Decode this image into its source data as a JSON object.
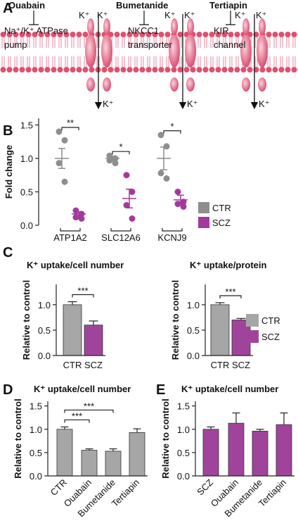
{
  "panel_labels": [
    "A",
    "B",
    "C",
    "D",
    "E"
  ],
  "panel_a": {
    "ion": "K⁺",
    "drugs": [
      {
        "name": "Ouabain",
        "target": [
          "Na⁺/K⁺ ATPase",
          "pump"
        ]
      },
      {
        "name": "Bumetanide",
        "target": [
          "NKCC1",
          "transporter"
        ]
      },
      {
        "name": "Tertiapin",
        "target": [
          "KIR",
          "channel"
        ]
      }
    ]
  },
  "chart_data": [
    {
      "type": "dot",
      "ylabel": "Fold change",
      "categories": [
        "ATP1A2",
        "SLC12A6",
        "KCNJ9"
      ],
      "series": [
        {
          "name": "CTR",
          "color": "#8e8e8e",
          "points": [
            [
              1.4,
              1.27,
              0.93,
              0.65
            ],
            [
              1.04,
              1.0,
              0.97,
              0.93
            ],
            [
              1.35,
              1.18,
              0.78,
              0.7
            ]
          ],
          "means": [
            1.0,
            1.0,
            1.0
          ],
          "sems": [
            0.15,
            0.03,
            0.17
          ]
        },
        {
          "name": "SCZ",
          "color": "#a3399d",
          "points": [
            [
              0.22,
              0.17,
              0.12,
              0.1
            ],
            [
              0.75,
              0.5,
              0.3,
              0.1
            ],
            [
              0.5,
              0.35,
              0.32,
              0.28
            ]
          ],
          "means": [
            0.17,
            0.4,
            0.38
          ],
          "sems": [
            0.03,
            0.14,
            0.07
          ]
        }
      ],
      "ylim": [
        0,
        1.6
      ],
      "yticks": [
        {
          "value": 0,
          "label": "0.0"
        },
        0.5,
        {
          "value": 1,
          "label": "1.0"
        },
        1.5
      ],
      "significance": [
        {
          "category": "ATP1A2",
          "label": "**"
        },
        {
          "category": "SLC12A6",
          "label": "*"
        },
        {
          "category": "KCNJ9",
          "label": "*"
        }
      ],
      "legend": true
    },
    {
      "type": "bar",
      "title": "K⁺ uptake/cell number",
      "ylabel": "Relative to control",
      "categories": [
        "CTR",
        "SCZ"
      ],
      "values": [
        1.0,
        0.6
      ],
      "errors": [
        0.06,
        0.08
      ],
      "colors": [
        "#a6a6a6",
        "#a0449b"
      ],
      "ylim": [
        0,
        1.4
      ],
      "yticks": [
        {
          "value": 0,
          "label": "0.0"
        },
        0.5,
        {
          "value": 1,
          "label": "1.0"
        }
      ],
      "significance": [
        {
          "between": [
            "CTR",
            "SCZ"
          ],
          "label": "***"
        }
      ],
      "legend": false,
      "xtick_rotation": 0
    },
    {
      "type": "bar",
      "title": "K⁺ uptake/protein",
      "ylabel": "Relative to control",
      "categories": [
        "CTR",
        "SCZ"
      ],
      "values": [
        1.0,
        0.7
      ],
      "errors": [
        0.04,
        0.03
      ],
      "colors": [
        "#a6a6a6",
        "#a0449b"
      ],
      "ylim": [
        0,
        1.4
      ],
      "yticks": [
        {
          "value": 0,
          "label": "0.0"
        },
        0.5,
        {
          "value": 1,
          "label": "1.0"
        }
      ],
      "significance": [
        {
          "between": [
            "CTR",
            "SCZ"
          ],
          "label": "***"
        }
      ],
      "legend": true,
      "xtick_rotation": 0
    },
    {
      "type": "bar",
      "title": "K⁺ uptake/cell number",
      "ylabel": "Relative to control",
      "categories": [
        "CTR",
        "Ouabain",
        "Bumetanide",
        "Tertiapin"
      ],
      "values": [
        1.0,
        0.55,
        0.53,
        0.93
      ],
      "errors": [
        0.05,
        0.03,
        0.05,
        0.08
      ],
      "colors": [
        "#a6a6a6",
        "#a6a6a6",
        "#a6a6a6",
        "#a6a6a6"
      ],
      "ylim": [
        0,
        1.6
      ],
      "yticks": [
        {
          "value": 0,
          "label": "0.0"
        },
        0.5,
        {
          "value": 1,
          "label": "1.0"
        },
        1.5
      ],
      "significance": [
        {
          "between": [
            "CTR",
            "Ouabain"
          ],
          "label": "***"
        },
        {
          "between": [
            "CTR",
            "Bumetanide"
          ],
          "label": "***"
        }
      ],
      "legend": false,
      "xtick_rotation": -45
    },
    {
      "type": "bar",
      "title": "K⁺ uptake/cell number",
      "ylabel": "Relative to control",
      "categories": [
        "SCZ",
        "Ouabain",
        "Bumetanide",
        "Tertiapin"
      ],
      "values": [
        1.0,
        1.13,
        0.96,
        1.1
      ],
      "errors": [
        0.05,
        0.22,
        0.04,
        0.25
      ],
      "colors": [
        "#a0449b",
        "#a0449b",
        "#a0449b",
        "#a0449b"
      ],
      "ylim": [
        0,
        1.6
      ],
      "yticks": [
        {
          "value": 0,
          "label": "0.0"
        },
        0.5,
        {
          "value": 1,
          "label": "1.0"
        },
        1.5
      ],
      "significance": [],
      "legend": false,
      "xtick_rotation": -45
    }
  ]
}
